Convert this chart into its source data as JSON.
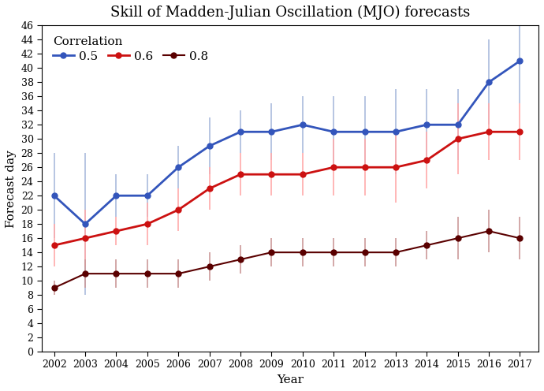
{
  "title": "Skill of Madden-Julian Oscillation (MJO) forecasts",
  "xlabel": "Year",
  "ylabel": "Forecast day",
  "years": [
    2002,
    2003,
    2004,
    2005,
    2006,
    2007,
    2008,
    2009,
    2010,
    2011,
    2012,
    2013,
    2014,
    2015,
    2016,
    2017
  ],
  "corr05": [
    22,
    18,
    22,
    22,
    26,
    29,
    31,
    31,
    32,
    31,
    31,
    31,
    32,
    32,
    38,
    41
  ],
  "corr06": [
    15,
    16,
    17,
    18,
    20,
    23,
    25,
    25,
    25,
    26,
    26,
    26,
    27,
    30,
    31,
    31
  ],
  "corr08": [
    9,
    11,
    11,
    11,
    11,
    12,
    13,
    14,
    14,
    14,
    14,
    14,
    15,
    16,
    17,
    16
  ],
  "corr05_err": [
    6,
    10,
    3,
    3,
    3,
    4,
    3,
    4,
    4,
    5,
    5,
    6,
    5,
    5,
    6,
    6
  ],
  "corr06_err": [
    3,
    4,
    2,
    3,
    3,
    3,
    3,
    3,
    3,
    4,
    4,
    5,
    4,
    5,
    4,
    4
  ],
  "corr08_err": [
    1,
    2,
    2,
    2,
    2,
    2,
    2,
    2,
    2,
    2,
    2,
    2,
    2,
    3,
    3,
    3
  ],
  "color05": "#3355BB",
  "color06": "#CC1111",
  "color08": "#5a0000",
  "color05_err": "#aabbdd",
  "color06_err": "#ffaaaa",
  "color08_err": "#cc9999",
  "ylim": [
    0,
    46
  ],
  "xlim_left": 2001.6,
  "xlim_right": 2017.6,
  "background_color": "#ffffff",
  "title_fontsize": 13,
  "axis_label_fontsize": 11,
  "tick_fontsize": 9,
  "legend_fontsize": 11
}
